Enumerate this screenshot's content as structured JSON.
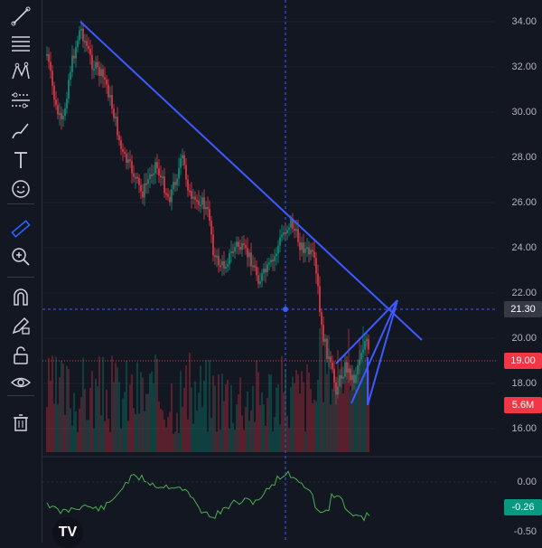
{
  "toolbar": {
    "tools": [
      {
        "icon": "trend-line-icon"
      },
      {
        "icon": "horizontal-lines-icon"
      },
      {
        "icon": "pattern-icon"
      },
      {
        "icon": "forecast-icon"
      },
      {
        "icon": "brush-icon"
      },
      {
        "icon": "text-icon"
      },
      {
        "icon": "emoji-icon"
      },
      {
        "icon": "ruler-icon"
      },
      {
        "icon": "zoom-in-icon"
      },
      {
        "icon": "magnet-icon"
      },
      {
        "icon": "pencil-lock-icon"
      },
      {
        "icon": "unlock-icon"
      },
      {
        "icon": "eye-icon"
      },
      {
        "icon": "trash-icon"
      }
    ]
  },
  "price_axis": {
    "labels": [
      "34.00",
      "32.00",
      "30.00",
      "28.00",
      "26.00",
      "24.00",
      "22.00",
      "20.00",
      "18.00",
      "16.00"
    ]
  },
  "indicator_axis": {
    "labels": [
      "0.00",
      "-0.50"
    ]
  },
  "badges": {
    "crosshair_price": {
      "text": "21.30",
      "color": "#363a45"
    },
    "current_price": {
      "text": "19.00",
      "color": "#f23645"
    },
    "volume": {
      "text": "5.6M",
      "color": "#f23645"
    },
    "indicator_value": {
      "text": "-0.26",
      "color": "#089981"
    }
  },
  "logo": {
    "text": "TV"
  },
  "colors": {
    "background": "#131722",
    "up": "#089981",
    "down": "#f23645",
    "drawing": "#3d5afe",
    "indicator": "#4caf50"
  }
}
